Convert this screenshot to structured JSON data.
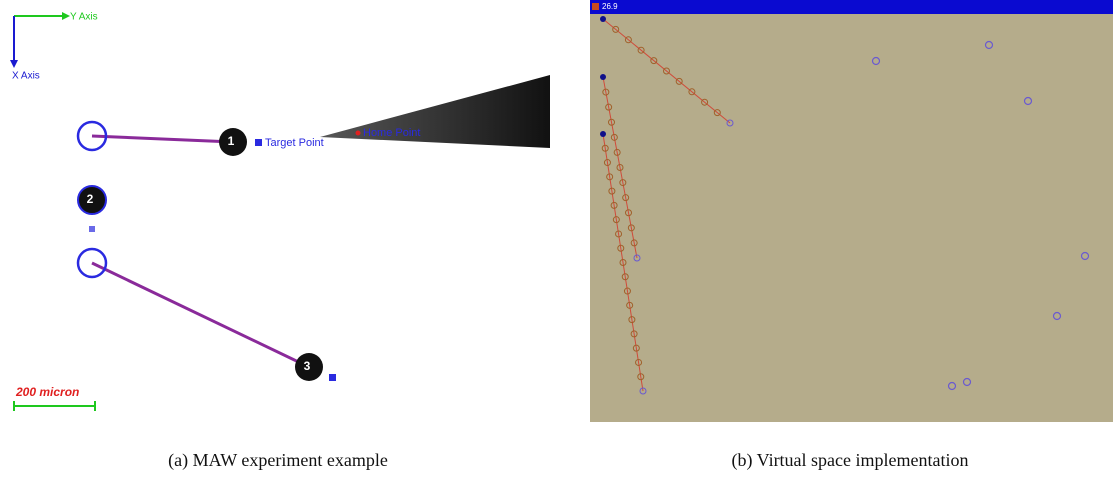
{
  "panel_a": {
    "y_axis_label": "Y Axis",
    "x_axis_label": "X Axis",
    "target_label": "Target Point",
    "home_label": "Home Point",
    "scale_label": "200 micron",
    "particle_labels": [
      "1",
      "2",
      "3"
    ]
  },
  "panel_b": {
    "title": "26.9"
  },
  "captions": [
    "(a) MAW experiment example",
    "(b) Virtual space implementation"
  ]
}
